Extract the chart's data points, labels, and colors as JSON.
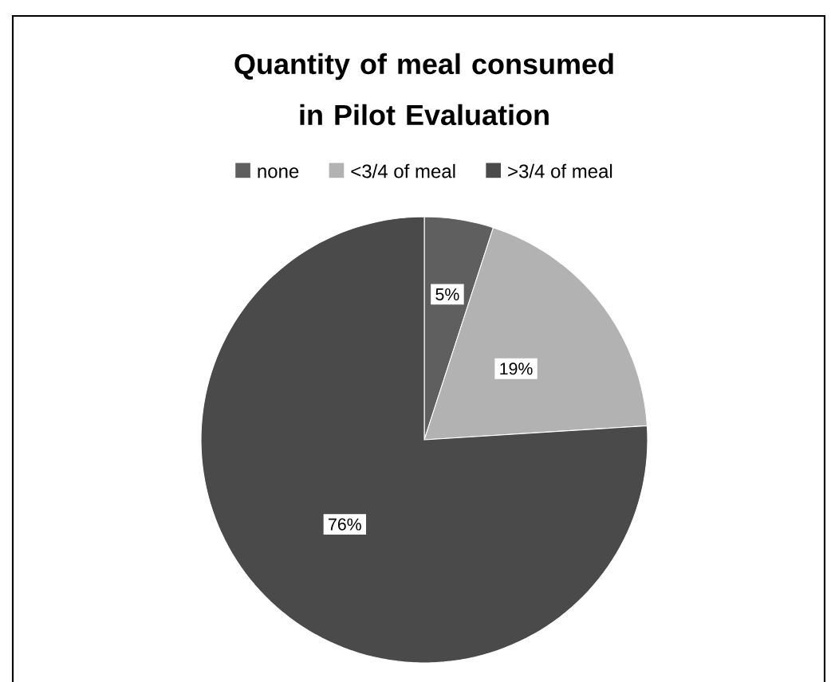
{
  "chart_data": {
    "type": "pie",
    "title": "Quantity of meal consumed in Pilot Evaluation",
    "categories": [
      "none",
      "<3/4 of meal",
      ">3/4 of meal"
    ],
    "values": [
      5,
      19,
      76
    ],
    "colors": [
      "#5f5f5f",
      "#b2b2b2",
      "#4a4a4a"
    ],
    "value_labels": [
      "5%",
      "19%",
      "76%"
    ],
    "legend": "top"
  }
}
